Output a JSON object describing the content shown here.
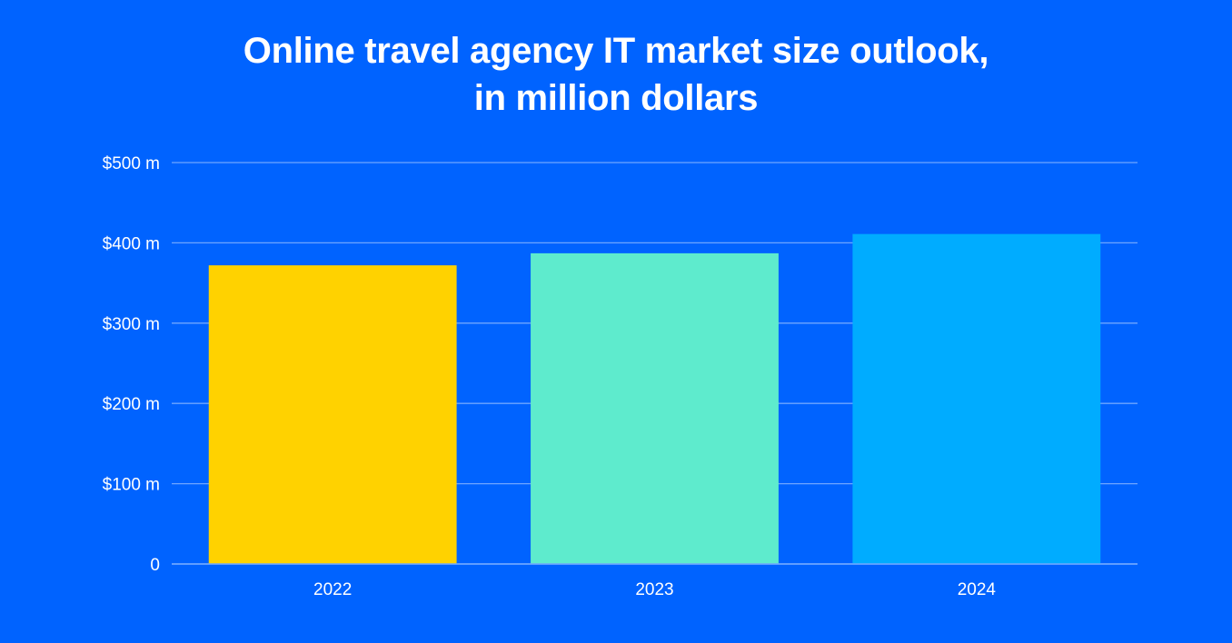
{
  "title_lines": [
    "Online travel agency IT market size outlook,",
    "in million dollars"
  ],
  "colors": {
    "background": "#0063ff",
    "gridline": "#6fa6ff",
    "text": "#ffffff"
  },
  "chart_data": {
    "type": "bar",
    "title": "Online travel agency IT market size outlook, in million dollars",
    "categories": [
      "2022",
      "2023",
      "2024"
    ],
    "values": [
      372,
      387,
      411
    ],
    "bar_colors": [
      "#ffd200",
      "#5eebcd",
      "#00acff"
    ],
    "ylim": [
      0,
      500
    ],
    "yticks": [
      0,
      100,
      200,
      300,
      400,
      500
    ],
    "ytick_labels": [
      "0",
      "$100 m",
      "$200 m",
      "$300 m",
      "$400 m",
      "$500 m"
    ],
    "xlabel": "",
    "ylabel": "",
    "grid": true,
    "legend": "none"
  }
}
